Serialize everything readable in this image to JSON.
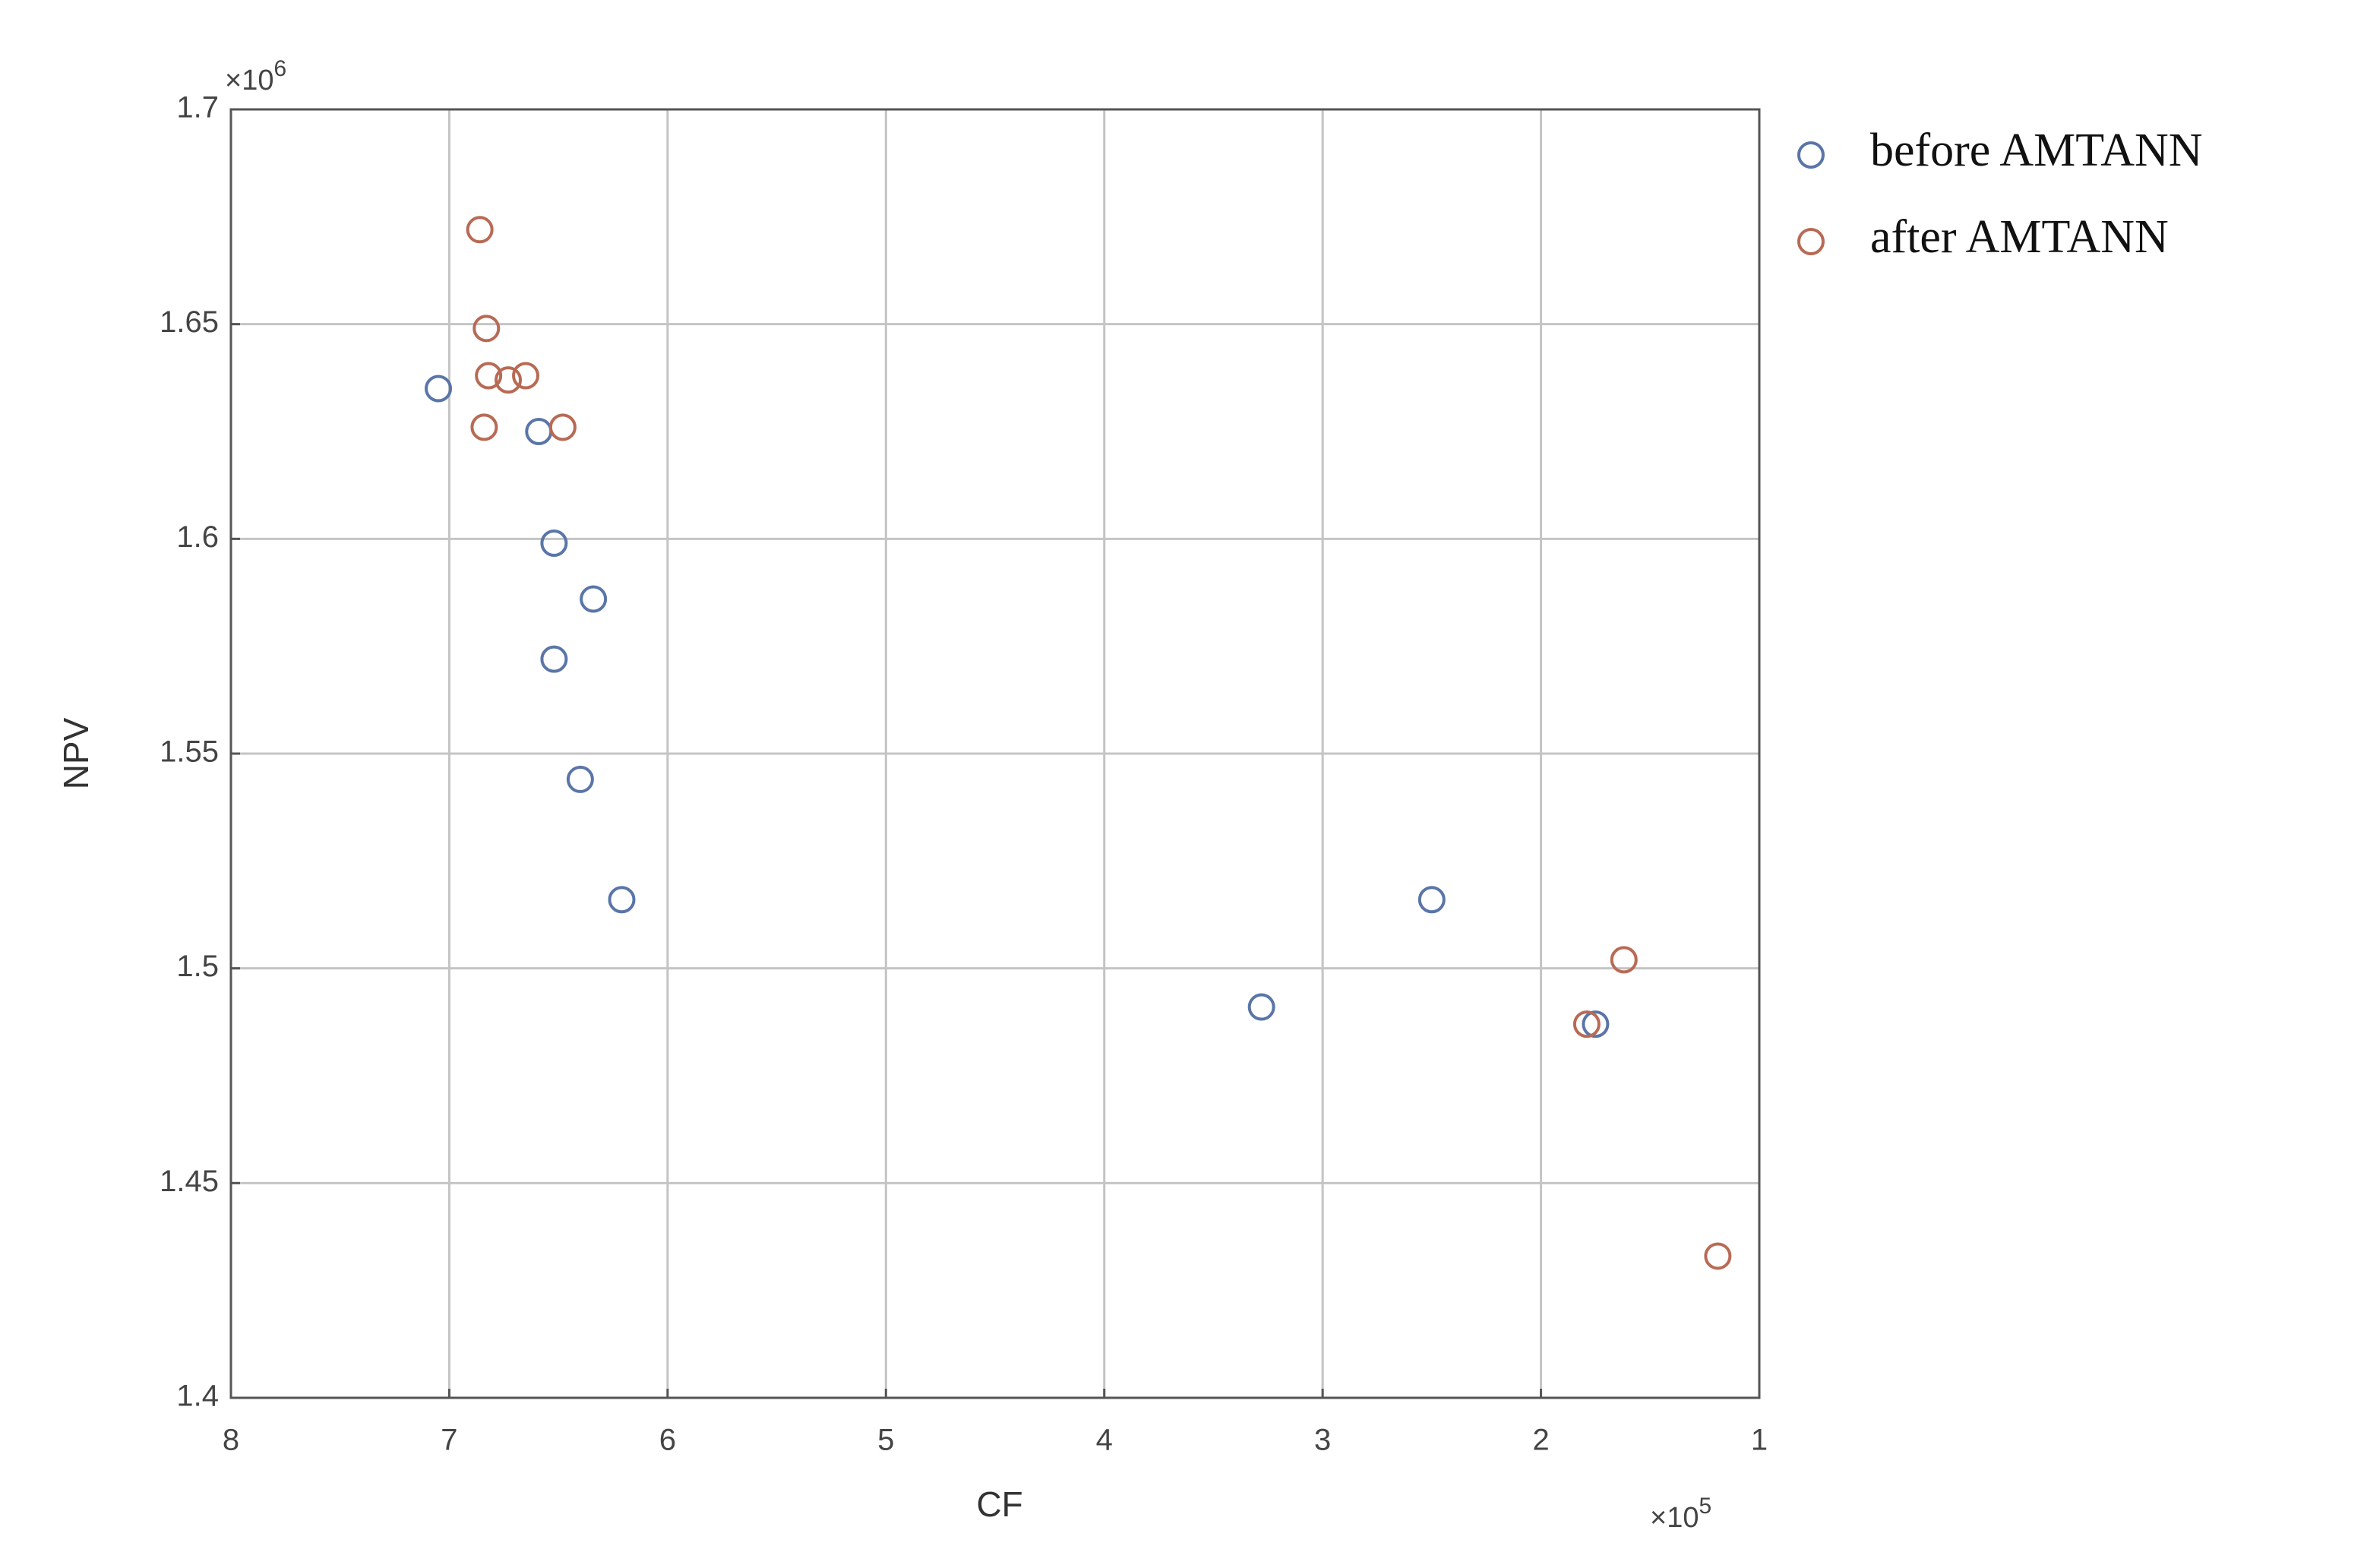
{
  "chart_data": {
    "type": "scatter",
    "x_label": "CF",
    "y_label": "NPV",
    "x_multiplier": {
      "base": "×10",
      "exponent": "5"
    },
    "y_multiplier": {
      "base": "×10",
      "exponent": "6"
    },
    "xlim": [
      8,
      1
    ],
    "xticks": [
      8,
      7,
      6,
      5,
      4,
      3,
      2,
      1
    ],
    "ylim": [
      1.4,
      1.7
    ],
    "yticks": [
      1.4,
      1.45,
      1.5,
      1.55,
      1.6,
      1.65,
      1.7
    ],
    "grid": true,
    "legend": "outside-right-top",
    "series": [
      {
        "name": "before AMTANN",
        "color": "#5a75a8",
        "x": [
          7.05,
          6.59,
          6.52,
          6.34,
          6.52,
          6.4,
          6.21,
          3.28,
          2.5,
          1.75
        ],
        "values": [
          1.635,
          1.625,
          1.599,
          1.586,
          1.572,
          1.544,
          1.516,
          1.491,
          1.516,
          1.487
        ]
      },
      {
        "name": "after AMTANN",
        "color": "#b86a55",
        "x": [
          6.86,
          6.83,
          6.82,
          6.73,
          6.65,
          6.84,
          6.48,
          1.62,
          1.79,
          1.19
        ],
        "values": [
          1.672,
          1.649,
          1.638,
          1.637,
          1.638,
          1.626,
          1.626,
          1.502,
          1.487,
          1.433
        ]
      }
    ]
  }
}
